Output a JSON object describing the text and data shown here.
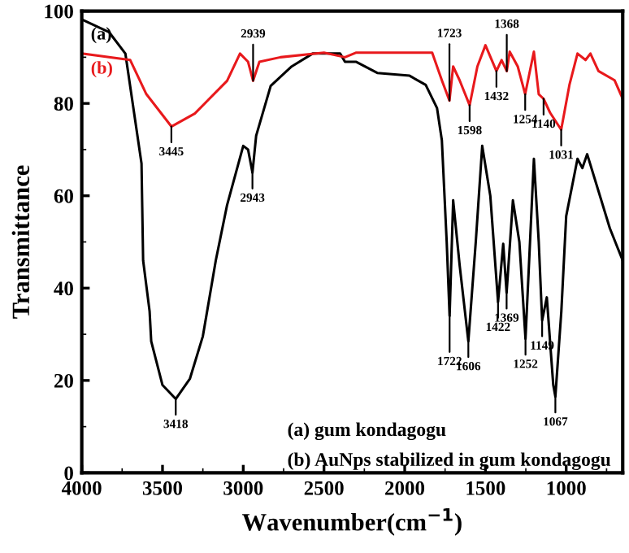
{
  "chart_data": {
    "type": "line",
    "xlabel": "Wavenumber(cm$^{−1}$)",
    "ylabel": "Transmittance",
    "xlim": [
      4000,
      650
    ],
    "ylim": [
      0,
      100
    ],
    "xticks": [
      4000,
      3500,
      3000,
      2500,
      2000,
      1500,
      1000
    ],
    "yticks": [
      0,
      20,
      40,
      60,
      80,
      100
    ],
    "grid": false,
    "legend": false,
    "marker": "none",
    "line_style": "solid",
    "series": [
      {
        "name": "(a)",
        "color": "#000000",
        "x": [
          4000,
          3830,
          3730,
          3630,
          3620,
          3580,
          3570,
          3500,
          3418,
          3330,
          3250,
          3170,
          3100,
          3000,
          2970,
          2943,
          2920,
          2830,
          2700,
          2570,
          2400,
          2370,
          2300,
          2170,
          1970,
          1870,
          1800,
          1770,
          1740,
          1722,
          1700,
          1660,
          1606,
          1560,
          1520,
          1470,
          1422,
          1390,
          1369,
          1330,
          1290,
          1252,
          1200,
          1170,
          1149,
          1120,
          1080,
          1067,
          1030,
          1000,
          930,
          900,
          870,
          800,
          730,
          680,
          650
        ],
        "values": [
          98.2,
          95.4,
          90.8,
          67,
          46,
          35,
          28.5,
          19,
          16,
          20.4,
          29.6,
          46,
          58,
          70.8,
          70,
          65,
          73,
          83.8,
          88,
          90.8,
          90.8,
          89,
          89,
          86.6,
          86,
          84,
          79,
          72,
          50,
          34,
          59,
          45,
          28.5,
          50,
          70.8,
          60,
          37,
          49.6,
          39,
          59,
          50,
          29,
          68,
          50,
          33,
          38,
          19,
          16.5,
          35,
          55.6,
          68,
          66,
          69,
          61,
          53,
          48.6,
          46
        ]
      },
      {
        "name": "(b)",
        "color": "#e8191c",
        "x": [
          4000,
          3700,
          3600,
          3445,
          3300,
          3100,
          3020,
          2970,
          2939,
          2900,
          2770,
          2500,
          2370,
          2300,
          1830,
          1770,
          1723,
          1700,
          1660,
          1598,
          1550,
          1500,
          1432,
          1400,
          1368,
          1350,
          1300,
          1254,
          1200,
          1170,
          1140,
          1100,
          1031,
          980,
          930,
          880,
          850,
          800,
          700,
          650
        ],
        "values": [
          90.8,
          89.4,
          82,
          75,
          77.8,
          84.9,
          90.8,
          89,
          84.9,
          89,
          90,
          91,
          90,
          91,
          91,
          85,
          80.6,
          88,
          85,
          79.6,
          88,
          92.6,
          87,
          89.4,
          87,
          91.2,
          88,
          82,
          91.2,
          82,
          81,
          78,
          74.3,
          84,
          90.8,
          89.4,
          90.8,
          87,
          85,
          81
        ]
      }
    ],
    "annotations": [
      {
        "text": "3418",
        "x": 3418,
        "y": 16
      },
      {
        "text": "3445",
        "x": 3445,
        "y": 75
      },
      {
        "text": "2939",
        "x": 2939,
        "y": 84.9
      },
      {
        "text": "2943",
        "x": 2943,
        "y": 65
      },
      {
        "text": "1723",
        "x": 1723,
        "y": 80.6
      },
      {
        "text": "1598",
        "x": 1598,
        "y": 79.6
      },
      {
        "text": "1432",
        "x": 1432,
        "y": 87
      },
      {
        "text": "1368",
        "x": 1368,
        "y": 87
      },
      {
        "text": "1254",
        "x": 1254,
        "y": 82
      },
      {
        "text": "1140",
        "x": 1140,
        "y": 81
      },
      {
        "text": "1031",
        "x": 1031,
        "y": 74.3
      },
      {
        "text": "1722",
        "x": 1722,
        "y": 34
      },
      {
        "text": "1606",
        "x": 1606,
        "y": 28.5
      },
      {
        "text": "1422",
        "x": 1422,
        "y": 37
      },
      {
        "text": "1369",
        "x": 1369,
        "y": 39
      },
      {
        "text": "1252",
        "x": 1252,
        "y": 29
      },
      {
        "text": "1149",
        "x": 1149,
        "y": 33
      },
      {
        "text": "1067",
        "x": 1067,
        "y": 16.5
      },
      "(a) gum kondagogu",
      "(b) AuNps stabilized in gum kondagogu"
    ]
  }
}
